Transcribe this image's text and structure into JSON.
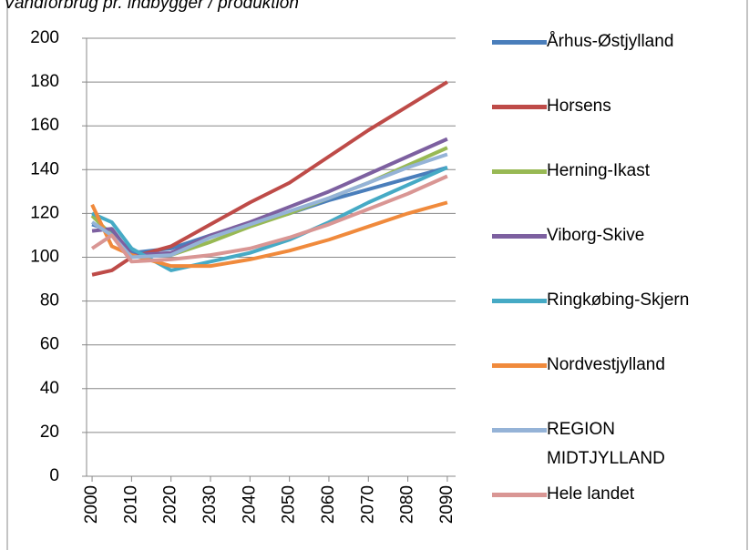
{
  "chart_data": {
    "type": "line",
    "title": "Vandforbrug pr. indbygger / produktion",
    "x": [
      2000,
      2005,
      2010,
      2020,
      2030,
      2040,
      2050,
      2060,
      2070,
      2080,
      2090
    ],
    "xlim": [
      1998.6,
      2092.1
    ],
    "xticks": [
      2000,
      2010,
      2020,
      2030,
      2040,
      2050,
      2060,
      2070,
      2080,
      2090
    ],
    "ylim": [
      0,
      200
    ],
    "yticks": [
      0,
      20,
      40,
      60,
      80,
      100,
      120,
      140,
      160,
      180,
      200
    ],
    "grid": true,
    "legend": "right",
    "series": [
      {
        "name": "Århus-Østjylland",
        "color": "#4a7ebb",
        "values": [
          115,
          112,
          102,
          104,
          110,
          115,
          120,
          126,
          131,
          136,
          141
        ]
      },
      {
        "name": "Horsens",
        "color": "#be4b48",
        "values": [
          92,
          94,
          100,
          105,
          115,
          125,
          134,
          146,
          158,
          169,
          180
        ]
      },
      {
        "name": "Herning-Ikast",
        "color": "#98b954",
        "values": [
          119,
          110,
          101,
          101,
          107,
          114,
          120,
          127,
          134,
          142,
          150
        ]
      },
      {
        "name": "Viborg-Skive",
        "color": "#7d60a0",
        "values": [
          112,
          113,
          101,
          102,
          110,
          116,
          123,
          130,
          138,
          146,
          154
        ]
      },
      {
        "name": "Ringkøbing-Skjern",
        "color": "#46aac5",
        "values": [
          120,
          116,
          104,
          94,
          98,
          102,
          108,
          116,
          125,
          133,
          141
        ]
      },
      {
        "name": "Nordvestjylland",
        "color": "#f08a3c",
        "values": [
          124,
          105,
          101,
          96,
          96,
          99,
          103,
          108,
          114,
          120,
          125
        ]
      },
      {
        "name": "REGION MIDTJYLLAND",
        "color": "#95b3d7",
        "values": [
          116,
          110,
          100,
          101,
          109,
          115,
          121,
          127,
          134,
          141,
          147
        ]
      },
      {
        "name": "Hele landet",
        "color": "#d99694",
        "values": [
          104,
          110,
          98,
          99,
          101,
          104,
          109,
          115,
          122,
          129,
          137
        ]
      }
    ]
  }
}
